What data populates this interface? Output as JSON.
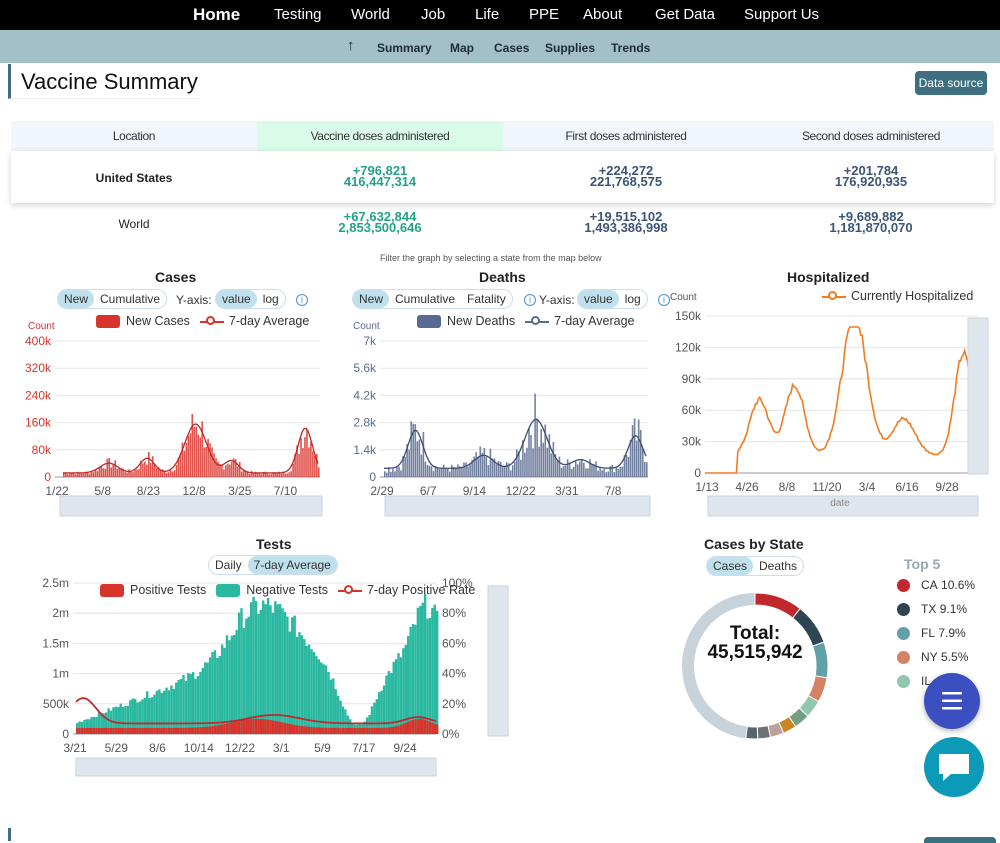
{
  "nav": {
    "home": "Home",
    "items": [
      "Testing",
      "World",
      "Job",
      "Life",
      "PPE",
      "About",
      "Get Data",
      "Support Us"
    ]
  },
  "subnav": {
    "up_icon": "arrow-up-icon",
    "items": [
      "Summary",
      "Map",
      "Cases",
      "Supplies",
      "Trends"
    ]
  },
  "page": {
    "title": "Vaccine Summary",
    "data_source_button": "Data source",
    "filter_note": "Filter the graph by selecting a state from the map below"
  },
  "vaccine_table": {
    "headers": [
      "Location",
      "Vaccine doses administered",
      "First doses administered",
      "Second doses administered"
    ],
    "rows": [
      {
        "location": "United States",
        "doses_new": "+796,821",
        "doses_total": "416,447,314",
        "first_new": "+224,272",
        "first_total": "221,768,575",
        "second_new": "+201,784",
        "second_total": "176,920,935"
      },
      {
        "location": "World",
        "doses_new": "+67,632,844",
        "doses_total": "2,853,500,646",
        "first_new": "+19,515,102",
        "first_total": "1,493,386,998",
        "second_new": "+9,689,882",
        "second_total": "1,181,870,070"
      }
    ]
  },
  "cases_chart": {
    "title": "Cases",
    "toggle": [
      "New",
      "Cumulative"
    ],
    "yaxis_label": "Y-axis:",
    "yaxis_toggle": [
      "value",
      "log"
    ],
    "legend": [
      "New Cases",
      "7-day Average"
    ],
    "count_label": "Count",
    "yticks": [
      "400k",
      "320k",
      "240k",
      "160k",
      "80k",
      "0"
    ],
    "xticks": [
      "1/22",
      "5/8",
      "8/23",
      "12/8",
      "3/25",
      "7/10"
    ],
    "color": "#d9342b"
  },
  "deaths_chart": {
    "title": "Deaths",
    "toggle": [
      "New",
      "Cumulative",
      "Fatality"
    ],
    "yaxis_label": "Y-axis:",
    "yaxis_toggle": [
      "value",
      "log"
    ],
    "legend": [
      "New Deaths",
      "7-day Average"
    ],
    "count_label": "Count",
    "yticks": [
      "7k",
      "5.6k",
      "4.2k",
      "2.8k",
      "1.4k",
      "0"
    ],
    "xticks": [
      "2/29",
      "6/7",
      "9/14",
      "12/22",
      "3/31",
      "7/8"
    ],
    "color": "#5a6b91"
  },
  "hosp_chart": {
    "title": "Hospitalized",
    "legend": [
      "Currently Hospitalized"
    ],
    "count_label": "Count",
    "yticks": [
      "150k",
      "120k",
      "90k",
      "60k",
      "30k",
      "0"
    ],
    "xticks": [
      "1/13",
      "4/26",
      "8/8",
      "11/20",
      "3/4",
      "6/16",
      "9/28"
    ],
    "xaxis_name": "date",
    "color": "#f47a20"
  },
  "tests_chart": {
    "title": "Tests",
    "toggle": [
      "Daily",
      "7-day Average"
    ],
    "legend": [
      "Positive Tests",
      "Negative Tests",
      "7-day Positive Rate"
    ],
    "yticks": [
      "2.5m",
      "2m",
      "1.5m",
      "1m",
      "500k",
      "0"
    ],
    "y2ticks": [
      "100%",
      "80%",
      "60%",
      "40%",
      "20%",
      "0%"
    ],
    "xticks": [
      "3/21",
      "5/29",
      "8/6",
      "10/14",
      "12/22",
      "3/1",
      "5/9",
      "7/17",
      "9/24"
    ],
    "colors": {
      "positive": "#d9342b",
      "negative": "#2bb8a0"
    }
  },
  "state_chart": {
    "title": "Cases by State",
    "toggle": [
      "Cases",
      "Deaths"
    ],
    "total_label": "Total:",
    "total_value": "45,515,942",
    "top5_title": "Top 5",
    "top5": [
      {
        "state": "CA",
        "pct": "10.6%",
        "color": "#c0282d"
      },
      {
        "state": "TX",
        "pct": "9.1%",
        "color": "#2f4554"
      },
      {
        "state": "FL",
        "pct": "7.9%",
        "color": "#61a0a8"
      },
      {
        "state": "NY",
        "pct": "5.5%",
        "color": "#d48265"
      },
      {
        "state": "IL",
        "pct": "",
        "color": "#91c7ae"
      }
    ]
  },
  "fab": {
    "menu_icon": "menu-icon",
    "chat_icon": "chat-icon"
  }
}
